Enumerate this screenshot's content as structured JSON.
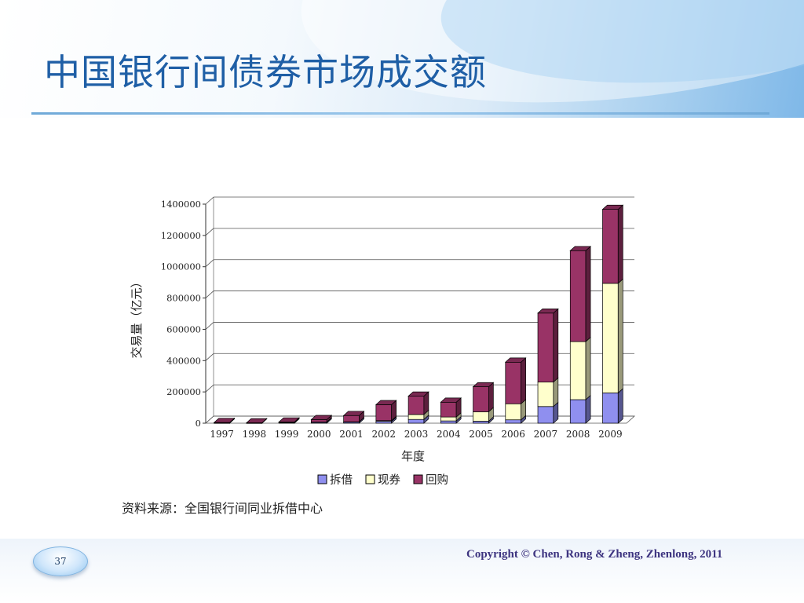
{
  "slide": {
    "title": "中国银行间债券市场成交额",
    "source_note": "资料来源：全国银行间同业拆借中心",
    "page_number": "37",
    "copyright": "Copyright © Chen, Rong  & Zheng, Zhenlong, 2011"
  },
  "colors": {
    "title": "#1f5fa6",
    "series": [
      "#8f8fef",
      "#ffffcc",
      "#993366"
    ],
    "rule": "#6fa9d8"
  },
  "chart_data": {
    "type": "bar",
    "stacked": true,
    "style": "3d-column",
    "title": "",
    "xlabel": "年度",
    "ylabel": "交易量（亿元）",
    "ylim": [
      0,
      1400000
    ],
    "yticks": [
      "0",
      "200000",
      "400000",
      "600000",
      "800000",
      "1000000",
      "1200000",
      "1400000"
    ],
    "grid": true,
    "legend_position": "bottom",
    "categories": [
      "1997",
      "1998",
      "1999",
      "2000",
      "2001",
      "2002",
      "2003",
      "2004",
      "2005",
      "2006",
      "2007",
      "2008",
      "2009"
    ],
    "series": [
      {
        "name": "拆借",
        "values": [
          1500,
          1300,
          3300,
          6700,
          8100,
          12100,
          24100,
          14600,
          12800,
          21500,
          106500,
          150500,
          193500
        ]
      },
      {
        "name": "现券",
        "values": [
          100,
          100,
          500,
          700,
          800,
          4400,
          31600,
          25000,
          60100,
          102600,
          156300,
          371100,
          700300
        ]
      },
      {
        "name": "回购",
        "values": [
          3000,
          1100,
          3900,
          15800,
          40100,
          101900,
          117200,
          94400,
          159800,
          265800,
          441000,
          581200,
          472800
        ]
      }
    ]
  }
}
